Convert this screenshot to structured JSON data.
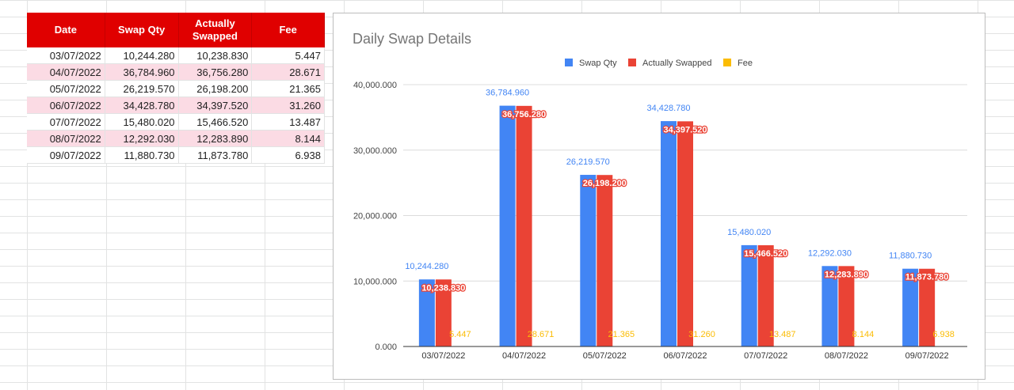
{
  "table": {
    "headers": [
      "Date",
      "Swap Qty",
      "Actually\nSwapped",
      "Fee"
    ],
    "rows": [
      [
        "03/07/2022",
        "10,244.280",
        "10,238.830",
        "5.447"
      ],
      [
        "04/07/2022",
        "36,784.960",
        "36,756.280",
        "28.671"
      ],
      [
        "05/07/2022",
        "26,219.570",
        "26,198.200",
        "21.365"
      ],
      [
        "06/07/2022",
        "34,428.780",
        "34,397.520",
        "31.260"
      ],
      [
        "07/07/2022",
        "15,480.020",
        "15,466.520",
        "13.487"
      ],
      [
        "08/07/2022",
        "12,292.030",
        "12,283.890",
        "8.144"
      ],
      [
        "09/07/2022",
        "11,880.730",
        "11,873.780",
        "6.938"
      ]
    ],
    "header_color": "#e00000",
    "alt_row_color": "#fbdbe4"
  },
  "chart_data": {
    "type": "bar",
    "title": "Daily Swap Details",
    "categories": [
      "03/07/2022",
      "04/07/2022",
      "05/07/2022",
      "06/07/2022",
      "07/07/2022",
      "08/07/2022",
      "09/07/2022"
    ],
    "series": [
      {
        "name": "Swap Qty",
        "color": "#4285f4",
        "values": [
          10244.28,
          36784.96,
          26219.57,
          34428.78,
          15480.02,
          12292.03,
          11880.73
        ],
        "labels": [
          "10,244.280",
          "36,784.960",
          "26,219.570",
          "34,428.780",
          "15,480.020",
          "12,292.030",
          "11,880.730"
        ]
      },
      {
        "name": "Actually Swapped",
        "color": "#ea4335",
        "values": [
          10238.83,
          36756.28,
          26198.2,
          34397.52,
          15466.52,
          12283.89,
          11873.78
        ],
        "labels": [
          "10,238.830",
          "36,756.280",
          "26,198.200",
          "34,397.520",
          "15,466.520",
          "12,283.890",
          "11,873.780"
        ]
      },
      {
        "name": "Fee",
        "color": "#fbbc04",
        "values": [
          5.447,
          28.671,
          21.365,
          31.26,
          13.487,
          8.144,
          6.938
        ],
        "labels": [
          "5.447",
          "28.671",
          "21.365",
          "31.260",
          "13.487",
          "8.144",
          "6.938"
        ]
      }
    ],
    "ylim": [
      0,
      40000
    ],
    "yticks": [
      0,
      10000,
      20000,
      30000,
      40000
    ],
    "ytick_labels": [
      "0.000",
      "10,000.000",
      "20,000.000",
      "30,000.000",
      "40,000.000"
    ],
    "xlabel": "",
    "ylabel": "",
    "grid": true,
    "legend": "top-center"
  }
}
